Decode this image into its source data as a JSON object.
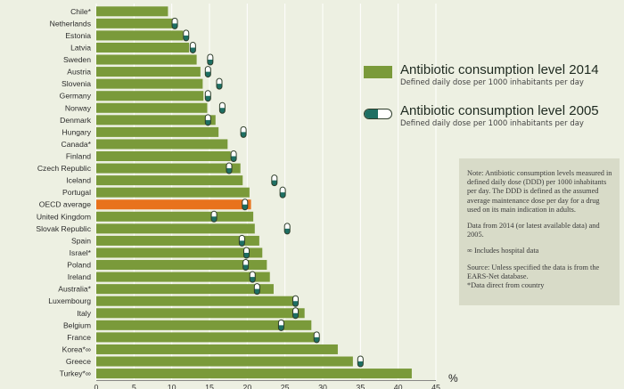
{
  "chart_data": {
    "type": "bar",
    "orientation": "horizontal",
    "categories": [
      "Chile*",
      "Netherlands",
      "Estonia",
      "Latvia",
      "Sweden",
      "Austria",
      "Slovenia",
      "Germany",
      "Norway",
      "Denmark",
      "Hungary",
      "Canada*",
      "Finland",
      "Czech Republic",
      "Iceland",
      "Portugal",
      "OECD average",
      "United Kingdom",
      "Slovak Republic",
      "Spain",
      "Israel*",
      "Poland",
      "Ireland",
      "Australia*",
      "Luxembourg",
      "Italy",
      "Belgium",
      "France",
      "Korea*∞",
      "Greece",
      "Turkey*∞"
    ],
    "series": [
      {
        "name": "Antibiotic consumption level 2014",
        "values": [
          9.5,
          10.3,
          11.5,
          12.3,
          13.3,
          13.8,
          14.1,
          14.2,
          14.7,
          15.8,
          16.2,
          17.4,
          17.8,
          19.1,
          19.4,
          20.3,
          20.5,
          20.8,
          21.0,
          21.6,
          22.0,
          22.6,
          23.0,
          23.5,
          26.5,
          27.6,
          28.5,
          29.0,
          32.0,
          34.0,
          41.8
        ],
        "highlight_category": "OECD average"
      },
      {
        "name": "Antibiotic consumption level 2005",
        "values": [
          null,
          10.4,
          11.9,
          12.8,
          15.1,
          14.8,
          16.3,
          14.8,
          16.7,
          14.8,
          19.5,
          null,
          18.2,
          17.6,
          23.6,
          24.7,
          19.7,
          15.6,
          25.3,
          19.3,
          19.9,
          19.8,
          20.7,
          21.3,
          26.4,
          26.4,
          24.5,
          29.2,
          null,
          35.0,
          null
        ]
      }
    ],
    "xlim": [
      0,
      45
    ],
    "xticks": [
      0,
      5,
      10,
      15,
      20,
      25,
      30,
      35,
      40,
      45
    ],
    "xlabel": "%",
    "grid": true,
    "legend_position": "top-right",
    "colors": {
      "bar": "#7a9a3a",
      "highlight": "#e8721c",
      "pill_fill": "#1e6f63",
      "pill_border": "#2e3d2a",
      "grid": "#ffffff"
    }
  },
  "legend": {
    "item_2014": {
      "title": "Antibiotic consumption level 2014",
      "subtitle": "Defined daily dose per 1000 inhabitants per day"
    },
    "item_2005": {
      "title": "Antibiotic consumption level 2005",
      "subtitle": "Defined daily dose per 1000 inhabitants per day"
    }
  },
  "note": {
    "p1": "Note: Antibiotic consumption levels measured in defined daily dose (DDD) per 1000 inhabitants per day. The DDD is defined as the assumed average maintenance dose per day for a drug used on its main indication in adults.",
    "p2": "Data from 2014 (or latest available data) and 2005.",
    "p3": "∞ Includes hospital data",
    "p4": "Source: Unless specified the data is from the EARS-Net database.",
    "p5": "*Data direct from country"
  }
}
